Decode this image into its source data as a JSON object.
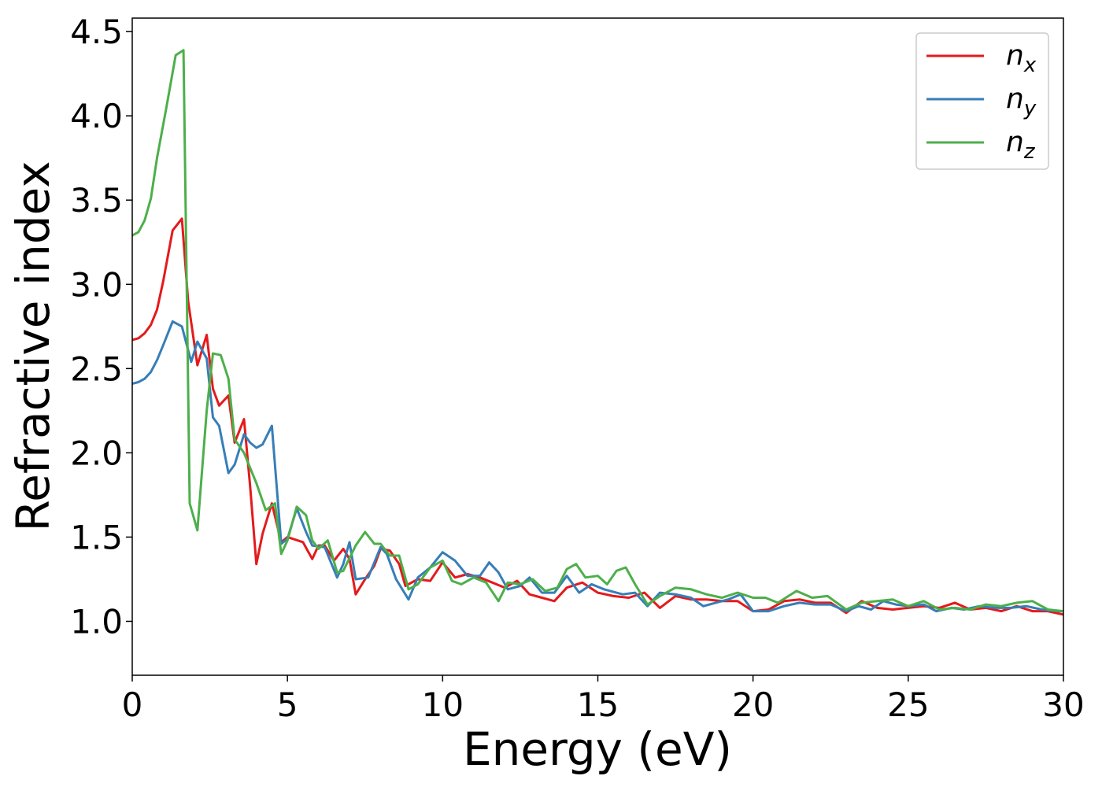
{
  "chart_data": {
    "type": "line",
    "xlabel": "Energy (eV)",
    "ylabel": "Refractive index",
    "xlim": [
      0,
      30
    ],
    "ylim": [
      0.68,
      4.58
    ],
    "xticks": [
      0,
      5,
      10,
      15,
      20,
      25,
      30
    ],
    "xtick_labels": [
      "0",
      "5",
      "10",
      "15",
      "20",
      "25",
      "30"
    ],
    "yticks": [
      1.0,
      1.5,
      2.0,
      2.5,
      3.0,
      3.5,
      4.0,
      4.5
    ],
    "ytick_labels": [
      "1.0",
      "1.5",
      "2.0",
      "2.5",
      "3.0",
      "3.5",
      "4.0",
      "4.5"
    ],
    "grid": false,
    "legend_position": "top-right",
    "series": [
      {
        "name": "n_x",
        "label_base": "n",
        "label_sub": "x",
        "color": "#e41a1c",
        "points": [
          [
            0,
            2.67
          ],
          [
            0.2,
            2.68
          ],
          [
            0.4,
            2.71
          ],
          [
            0.6,
            2.76
          ],
          [
            0.8,
            2.85
          ],
          [
            1.0,
            3.02
          ],
          [
            1.3,
            3.32
          ],
          [
            1.6,
            3.39
          ],
          [
            1.8,
            2.9
          ],
          [
            2.1,
            2.52
          ],
          [
            2.4,
            2.7
          ],
          [
            2.6,
            2.38
          ],
          [
            2.8,
            2.28
          ],
          [
            3.1,
            2.34
          ],
          [
            3.3,
            2.06
          ],
          [
            3.6,
            2.2
          ],
          [
            3.8,
            1.8
          ],
          [
            4.0,
            1.34
          ],
          [
            4.2,
            1.52
          ],
          [
            4.5,
            1.7
          ],
          [
            4.8,
            1.47
          ],
          [
            5.0,
            1.5
          ],
          [
            5.5,
            1.47
          ],
          [
            5.8,
            1.37
          ],
          [
            6.0,
            1.45
          ],
          [
            6.2,
            1.45
          ],
          [
            6.5,
            1.36
          ],
          [
            6.8,
            1.43
          ],
          [
            7.0,
            1.37
          ],
          [
            7.2,
            1.16
          ],
          [
            7.5,
            1.25
          ],
          [
            7.8,
            1.33
          ],
          [
            8.0,
            1.43
          ],
          [
            8.3,
            1.42
          ],
          [
            8.6,
            1.34
          ],
          [
            8.8,
            1.21
          ],
          [
            9.2,
            1.25
          ],
          [
            9.6,
            1.24
          ],
          [
            10.0,
            1.35
          ],
          [
            10.4,
            1.26
          ],
          [
            10.8,
            1.28
          ],
          [
            11.2,
            1.26
          ],
          [
            11.6,
            1.23
          ],
          [
            12.0,
            1.2
          ],
          [
            12.4,
            1.24
          ],
          [
            12.8,
            1.16
          ],
          [
            13.2,
            1.14
          ],
          [
            13.6,
            1.12
          ],
          [
            14.0,
            1.2
          ],
          [
            14.5,
            1.23
          ],
          [
            15.0,
            1.17
          ],
          [
            15.5,
            1.15
          ],
          [
            16.0,
            1.14
          ],
          [
            16.5,
            1.17
          ],
          [
            17.0,
            1.08
          ],
          [
            17.5,
            1.15
          ],
          [
            18.0,
            1.13
          ],
          [
            18.5,
            1.13
          ],
          [
            19.0,
            1.12
          ],
          [
            19.5,
            1.12
          ],
          [
            20.0,
            1.06
          ],
          [
            20.5,
            1.07
          ],
          [
            21.0,
            1.12
          ],
          [
            21.5,
            1.13
          ],
          [
            22.0,
            1.11
          ],
          [
            22.5,
            1.11
          ],
          [
            23.0,
            1.05
          ],
          [
            23.5,
            1.12
          ],
          [
            24.0,
            1.08
          ],
          [
            24.5,
            1.07
          ],
          [
            25.0,
            1.08
          ],
          [
            25.5,
            1.09
          ],
          [
            26.0,
            1.08
          ],
          [
            26.5,
            1.11
          ],
          [
            27.0,
            1.07
          ],
          [
            27.5,
            1.08
          ],
          [
            28.0,
            1.06
          ],
          [
            28.5,
            1.09
          ],
          [
            29.0,
            1.06
          ],
          [
            29.5,
            1.06
          ],
          [
            30.0,
            1.04
          ]
        ]
      },
      {
        "name": "n_y",
        "label_base": "n",
        "label_sub": "y",
        "color": "#377eb8",
        "points": [
          [
            0,
            2.41
          ],
          [
            0.2,
            2.42
          ],
          [
            0.4,
            2.44
          ],
          [
            0.6,
            2.48
          ],
          [
            0.8,
            2.55
          ],
          [
            1.0,
            2.64
          ],
          [
            1.3,
            2.78
          ],
          [
            1.6,
            2.75
          ],
          [
            1.9,
            2.54
          ],
          [
            2.1,
            2.66
          ],
          [
            2.4,
            2.56
          ],
          [
            2.6,
            2.21
          ],
          [
            2.8,
            2.16
          ],
          [
            3.1,
            1.88
          ],
          [
            3.3,
            1.93
          ],
          [
            3.6,
            2.11
          ],
          [
            3.8,
            2.06
          ],
          [
            4.0,
            2.03
          ],
          [
            4.2,
            2.05
          ],
          [
            4.5,
            2.16
          ],
          [
            4.8,
            1.46
          ],
          [
            5.0,
            1.49
          ],
          [
            5.3,
            1.67
          ],
          [
            5.6,
            1.53
          ],
          [
            5.8,
            1.45
          ],
          [
            6.2,
            1.44
          ],
          [
            6.6,
            1.26
          ],
          [
            6.8,
            1.34
          ],
          [
            7.0,
            1.47
          ],
          [
            7.2,
            1.25
          ],
          [
            7.6,
            1.26
          ],
          [
            8.0,
            1.44
          ],
          [
            8.2,
            1.4
          ],
          [
            8.5,
            1.25
          ],
          [
            8.9,
            1.13
          ],
          [
            9.2,
            1.26
          ],
          [
            9.6,
            1.32
          ],
          [
            10.0,
            1.41
          ],
          [
            10.4,
            1.36
          ],
          [
            10.8,
            1.27
          ],
          [
            11.2,
            1.27
          ],
          [
            11.5,
            1.35
          ],
          [
            11.8,
            1.29
          ],
          [
            12.1,
            1.19
          ],
          [
            12.5,
            1.21
          ],
          [
            12.8,
            1.26
          ],
          [
            13.2,
            1.17
          ],
          [
            13.6,
            1.17
          ],
          [
            14.0,
            1.27
          ],
          [
            14.4,
            1.17
          ],
          [
            14.8,
            1.22
          ],
          [
            15.2,
            1.19
          ],
          [
            15.8,
            1.16
          ],
          [
            16.2,
            1.17
          ],
          [
            16.6,
            1.09
          ],
          [
            17.0,
            1.17
          ],
          [
            17.5,
            1.16
          ],
          [
            18.0,
            1.14
          ],
          [
            18.4,
            1.09
          ],
          [
            18.8,
            1.11
          ],
          [
            19.2,
            1.13
          ],
          [
            19.6,
            1.16
          ],
          [
            20.0,
            1.06
          ],
          [
            20.5,
            1.06
          ],
          [
            21.0,
            1.09
          ],
          [
            21.5,
            1.11
          ],
          [
            22.0,
            1.1
          ],
          [
            22.5,
            1.1
          ],
          [
            23.0,
            1.06
          ],
          [
            23.4,
            1.09
          ],
          [
            23.8,
            1.07
          ],
          [
            24.2,
            1.12
          ],
          [
            24.6,
            1.1
          ],
          [
            25.0,
            1.09
          ],
          [
            25.5,
            1.1
          ],
          [
            25.9,
            1.06
          ],
          [
            26.4,
            1.08
          ],
          [
            26.8,
            1.07
          ],
          [
            27.3,
            1.09
          ],
          [
            27.8,
            1.08
          ],
          [
            28.3,
            1.08
          ],
          [
            28.8,
            1.09
          ],
          [
            29.3,
            1.07
          ],
          [
            29.8,
            1.06
          ],
          [
            30.0,
            1.06
          ]
        ]
      },
      {
        "name": "n_z",
        "label_base": "n",
        "label_sub": "z",
        "color": "#4daf4a",
        "points": [
          [
            0,
            3.29
          ],
          [
            0.2,
            3.31
          ],
          [
            0.4,
            3.38
          ],
          [
            0.6,
            3.51
          ],
          [
            0.8,
            3.75
          ],
          [
            1.1,
            4.05
          ],
          [
            1.4,
            4.36
          ],
          [
            1.65,
            4.39
          ],
          [
            1.85,
            1.7
          ],
          [
            2.1,
            1.54
          ],
          [
            2.4,
            2.25
          ],
          [
            2.6,
            2.59
          ],
          [
            2.85,
            2.58
          ],
          [
            3.1,
            2.44
          ],
          [
            3.3,
            2.08
          ],
          [
            3.6,
            2.0
          ],
          [
            4.0,
            1.82
          ],
          [
            4.3,
            1.66
          ],
          [
            4.6,
            1.7
          ],
          [
            4.8,
            1.4
          ],
          [
            5.0,
            1.48
          ],
          [
            5.3,
            1.68
          ],
          [
            5.6,
            1.63
          ],
          [
            5.8,
            1.48
          ],
          [
            6.0,
            1.43
          ],
          [
            6.3,
            1.48
          ],
          [
            6.6,
            1.29
          ],
          [
            6.8,
            1.3
          ],
          [
            7.2,
            1.45
          ],
          [
            7.5,
            1.53
          ],
          [
            7.8,
            1.46
          ],
          [
            8.0,
            1.46
          ],
          [
            8.3,
            1.39
          ],
          [
            8.6,
            1.39
          ],
          [
            8.9,
            1.19
          ],
          [
            9.2,
            1.22
          ],
          [
            9.6,
            1.32
          ],
          [
            10.0,
            1.36
          ],
          [
            10.3,
            1.24
          ],
          [
            10.6,
            1.22
          ],
          [
            11.0,
            1.26
          ],
          [
            11.4,
            1.23
          ],
          [
            11.8,
            1.12
          ],
          [
            12.1,
            1.23
          ],
          [
            12.5,
            1.22
          ],
          [
            12.9,
            1.25
          ],
          [
            13.3,
            1.18
          ],
          [
            13.7,
            1.2
          ],
          [
            14.0,
            1.31
          ],
          [
            14.3,
            1.34
          ],
          [
            14.6,
            1.26
          ],
          [
            15.0,
            1.27
          ],
          [
            15.3,
            1.22
          ],
          [
            15.6,
            1.3
          ],
          [
            15.9,
            1.32
          ],
          [
            16.2,
            1.22
          ],
          [
            16.6,
            1.1
          ],
          [
            17.0,
            1.15
          ],
          [
            17.5,
            1.2
          ],
          [
            18.0,
            1.19
          ],
          [
            18.5,
            1.16
          ],
          [
            19.0,
            1.14
          ],
          [
            19.5,
            1.17
          ],
          [
            20.0,
            1.14
          ],
          [
            20.4,
            1.14
          ],
          [
            20.8,
            1.11
          ],
          [
            21.4,
            1.18
          ],
          [
            21.9,
            1.14
          ],
          [
            22.4,
            1.15
          ],
          [
            23.0,
            1.07
          ],
          [
            23.5,
            1.11
          ],
          [
            24.0,
            1.12
          ],
          [
            24.5,
            1.13
          ],
          [
            25.0,
            1.09
          ],
          [
            25.5,
            1.12
          ],
          [
            26.0,
            1.07
          ],
          [
            26.5,
            1.08
          ],
          [
            27.0,
            1.07
          ],
          [
            27.5,
            1.1
          ],
          [
            28.0,
            1.09
          ],
          [
            28.5,
            1.11
          ],
          [
            29.0,
            1.12
          ],
          [
            29.5,
            1.07
          ],
          [
            30.0,
            1.06
          ]
        ]
      }
    ]
  }
}
